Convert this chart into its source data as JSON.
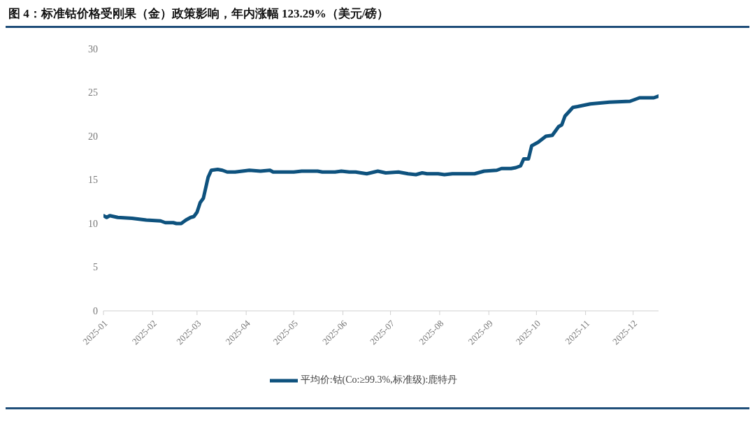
{
  "chart_data": {
    "type": "line",
    "title": "图 4：标准钴价格受刚果（金）政策影响，年内涨幅 123.29%（美元/磅）",
    "x": [
      "2025-01-01",
      "2025-01-03",
      "2025-01-05",
      "2025-01-10",
      "2025-01-19",
      "2025-01-28",
      "2025-02-06",
      "2025-02-09",
      "2025-02-14",
      "2025-02-16",
      "2025-02-19",
      "2025-02-22",
      "2025-02-25",
      "2025-02-27",
      "2025-03-01",
      "2025-03-03",
      "2025-03-05",
      "2025-03-07",
      "2025-03-08",
      "2025-03-10",
      "2025-03-14",
      "2025-03-17",
      "2025-03-20",
      "2025-03-25",
      "2025-04-03",
      "2025-04-10",
      "2025-04-16",
      "2025-04-18",
      "2025-05-01",
      "2025-05-06",
      "2025-05-11",
      "2025-05-16",
      "2025-05-19",
      "2025-05-27",
      "2025-05-31",
      "2025-06-05",
      "2025-06-09",
      "2025-06-16",
      "2025-06-23",
      "2025-06-28",
      "2025-07-06",
      "2025-07-12",
      "2025-07-17",
      "2025-07-21",
      "2025-07-24",
      "2025-07-31",
      "2025-08-04",
      "2025-08-09",
      "2025-08-23",
      "2025-08-29",
      "2025-09-06",
      "2025-09-09",
      "2025-09-15",
      "2025-09-18",
      "2025-09-21",
      "2025-09-23",
      "2025-09-26",
      "2025-09-28",
      "2025-10-02",
      "2025-10-07",
      "2025-10-11",
      "2025-10-15",
      "2025-10-17",
      "2025-10-19",
      "2025-10-24",
      "2025-10-27",
      "2025-11-04",
      "2025-11-16",
      "2025-11-29",
      "2025-12-05",
      "2025-12-14",
      "2025-12-17"
    ],
    "series": [
      {
        "name": "平均价:钴(Co:≥99.3%,标准级):鹿特丹",
        "color": "#0e527e",
        "values": [
          10.9,
          10.7,
          10.9,
          10.7,
          10.6,
          10.4,
          10.3,
          10.1,
          10.1,
          10.0,
          10.0,
          10.4,
          10.7,
          10.8,
          11.3,
          12.4,
          12.9,
          14.5,
          15.3,
          16.1,
          16.2,
          16.1,
          15.9,
          15.9,
          16.1,
          16.0,
          16.1,
          15.9,
          15.9,
          16.0,
          16.0,
          16.0,
          15.9,
          15.9,
          16.0,
          15.9,
          15.9,
          15.7,
          16.0,
          15.8,
          15.9,
          15.7,
          15.6,
          15.8,
          15.7,
          15.7,
          15.6,
          15.7,
          15.7,
          16.0,
          16.1,
          16.3,
          16.3,
          16.4,
          16.6,
          17.4,
          17.4,
          18.9,
          19.3,
          20.0,
          20.1,
          21.1,
          21.3,
          22.3,
          23.3,
          23.4,
          23.7,
          23.9,
          24.0,
          24.4,
          24.4,
          24.6
        ]
      }
    ],
    "xlim": [
      "2025-01-01",
      "2025-12-17"
    ],
    "xticks": [
      {
        "value": "2025-01-01",
        "label": "2025-01"
      },
      {
        "value": "2025-02-01",
        "label": "2025-02"
      },
      {
        "value": "2025-03-01",
        "label": "2025-03"
      },
      {
        "value": "2025-04-01",
        "label": "2025-04"
      },
      {
        "value": "2025-05-01",
        "label": "2025-05"
      },
      {
        "value": "2025-06-01",
        "label": "2025-06"
      },
      {
        "value": "2025-07-01",
        "label": "2025-07"
      },
      {
        "value": "2025-08-01",
        "label": "2025-08"
      },
      {
        "value": "2025-09-01",
        "label": "2025-09"
      },
      {
        "value": "2025-10-01",
        "label": "2025-10"
      },
      {
        "value": "2025-11-01",
        "label": "2025-11"
      },
      {
        "value": "2025-12-01",
        "label": "2025-12"
      }
    ],
    "ylim": [
      0,
      30
    ],
    "yticks": [
      0,
      5,
      10,
      15,
      20,
      25,
      30
    ],
    "grid": false,
    "legend": "bottom",
    "marker": "none",
    "line_style": "solid"
  }
}
